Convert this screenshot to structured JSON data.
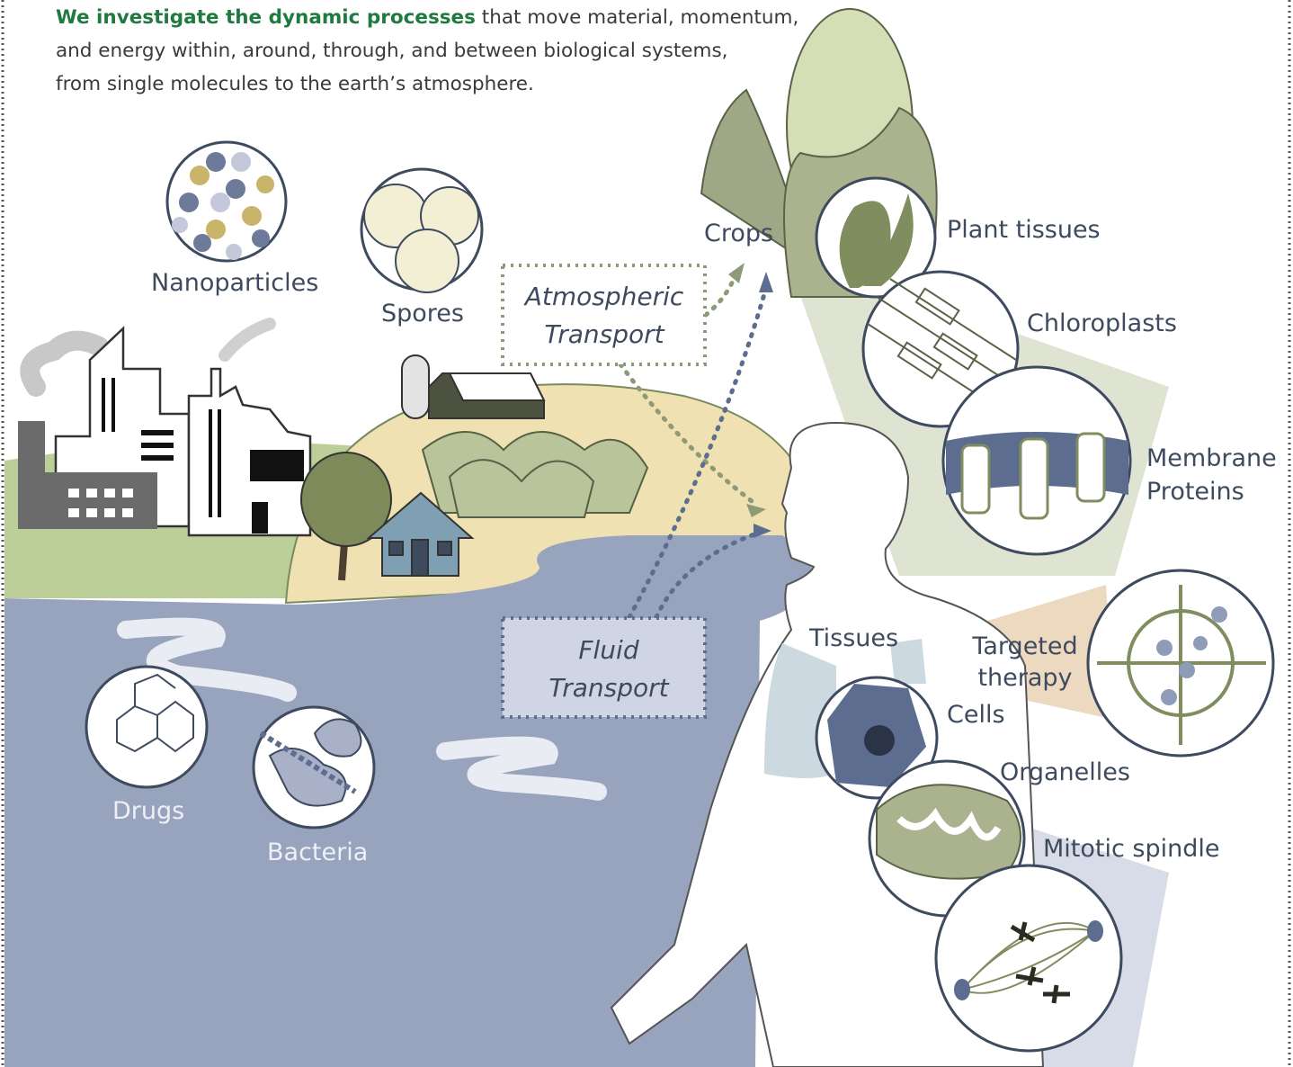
{
  "intro": {
    "highlight": "We investigate the dynamic processes",
    "lines": [
      "that move material, momentum,",
      "and energy within, around, through, and between biological systems,",
      "from single molecules to the earth’s atmosphere."
    ]
  },
  "labels": {
    "nanoparticles": "Nanoparticles",
    "spores": "Spores",
    "crops": "Crops",
    "plant_tissues": "Plant tissues",
    "chloroplasts": "Chloroplasts",
    "membrane_proteins": [
      "Membrane",
      "Proteins"
    ],
    "tissues": "Tissues",
    "targeted_therapy": [
      "Targeted",
      "therapy"
    ],
    "cells": "Cells",
    "organelles": "Organelles",
    "mitotic_spindle": "Mitotic spindle",
    "drugs": "Drugs",
    "bacteria": "Bacteria"
  },
  "transport": {
    "atmospheric": [
      "Atmospheric",
      "Transport"
    ],
    "fluid": [
      "Fluid",
      "Transport"
    ]
  }
}
